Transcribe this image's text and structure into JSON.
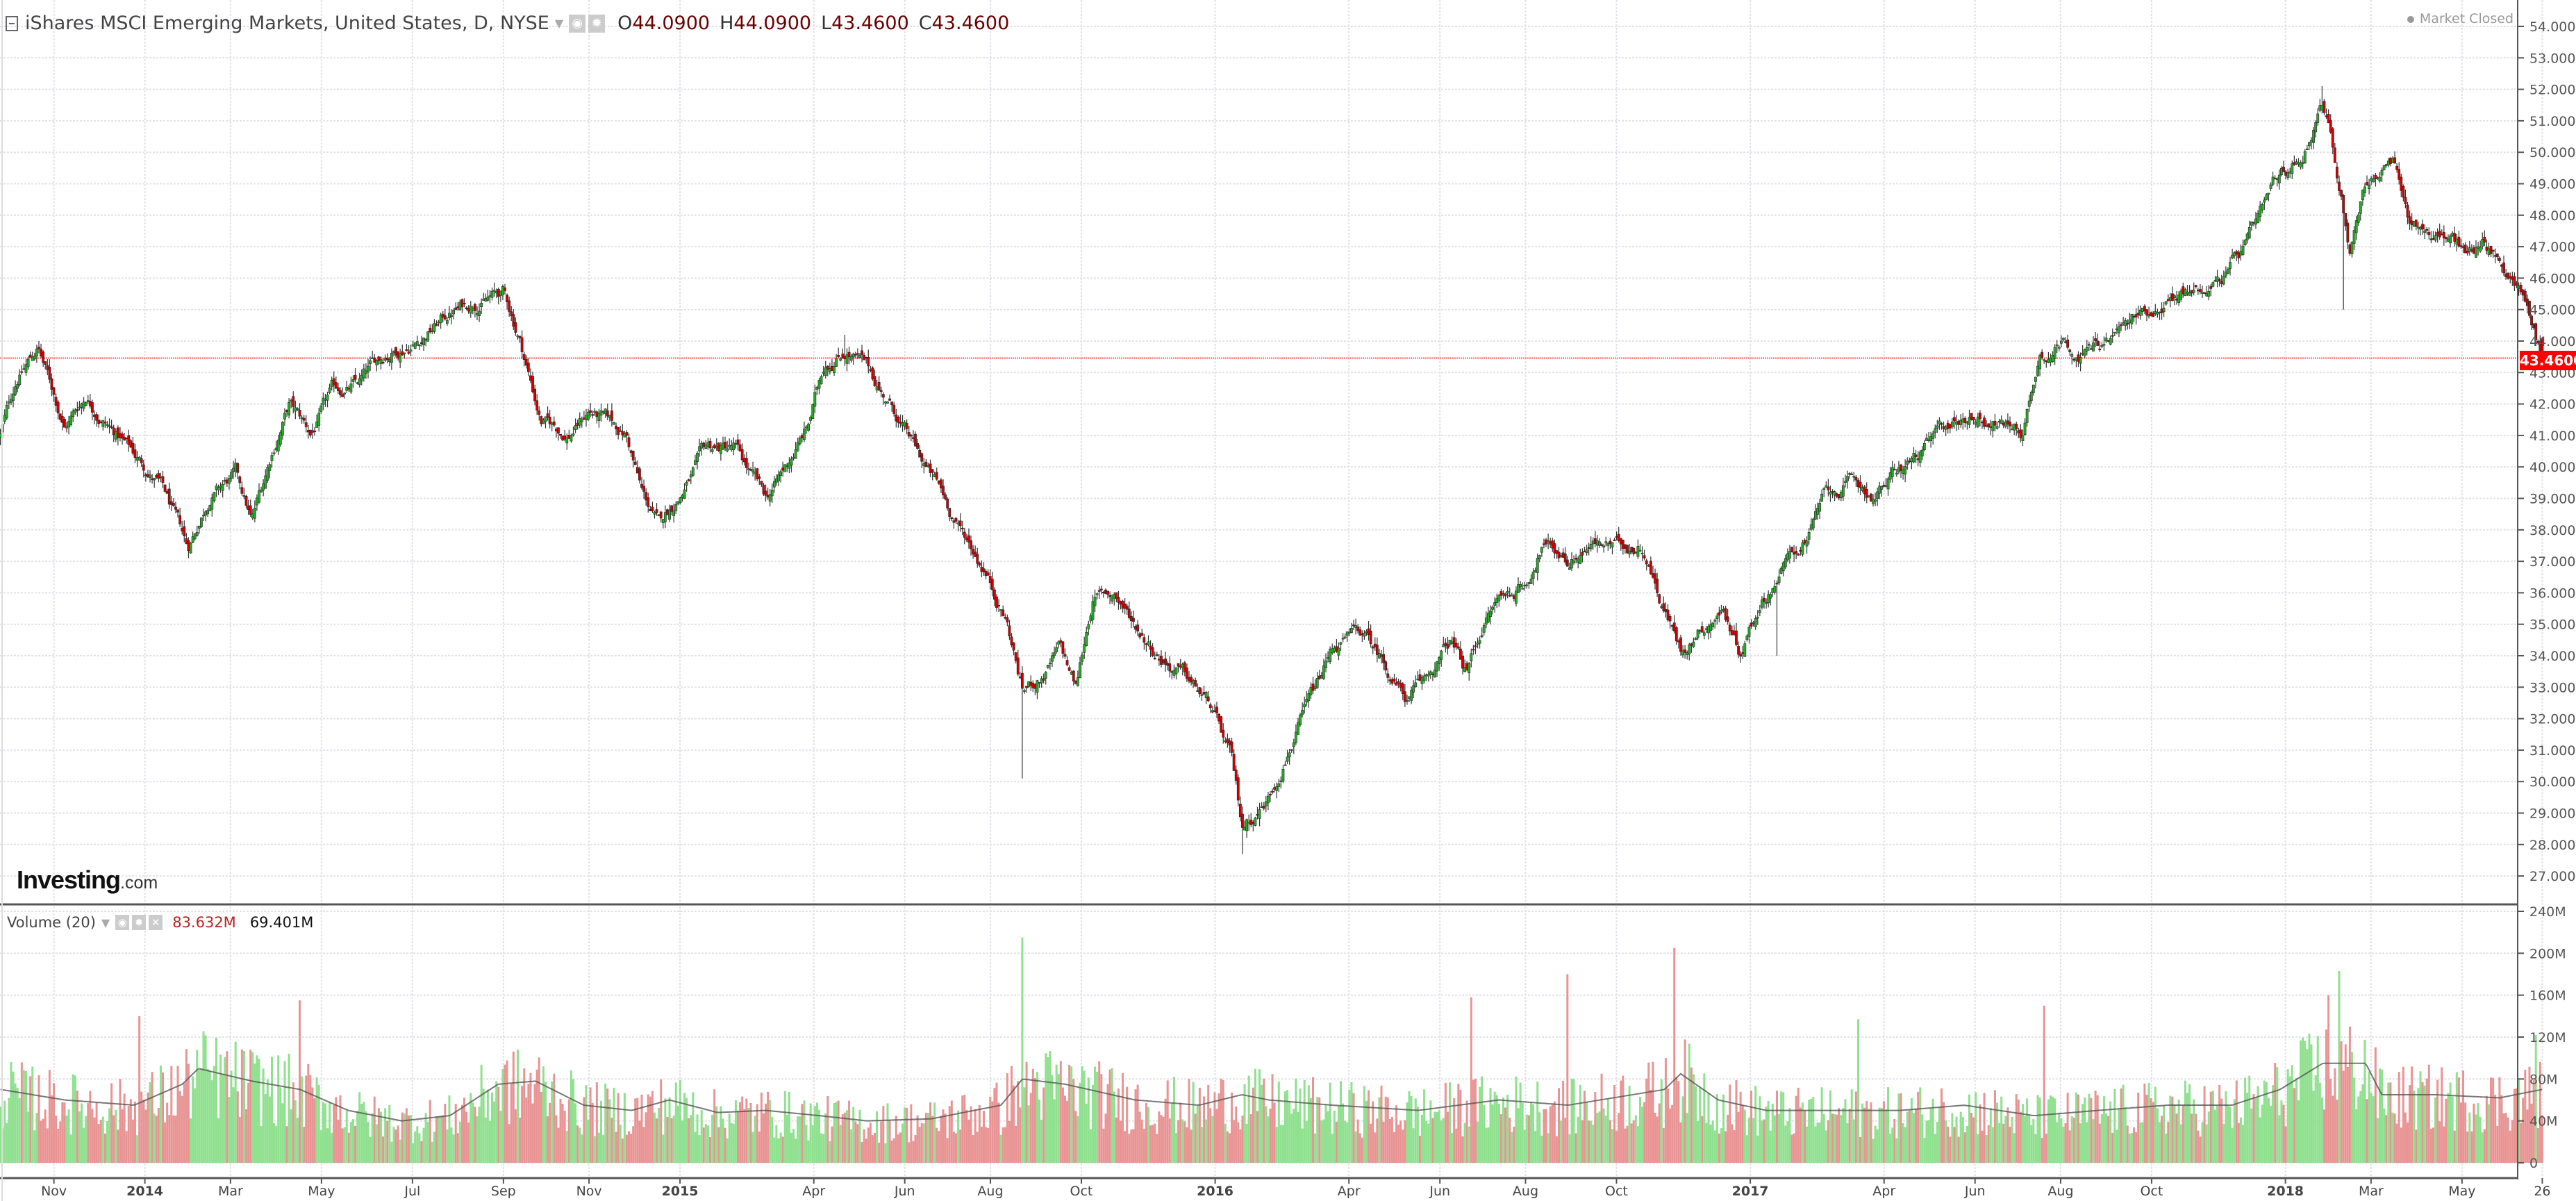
{
  "header": {
    "title": "iShares MSCI Emerging Markets, United States, D, NYSE",
    "ohlc": [
      {
        "key": "O",
        "value": "44.0900"
      },
      {
        "key": "H",
        "value": "44.0900"
      },
      {
        "key": "L",
        "value": "43.4600"
      },
      {
        "key": "C",
        "value": "43.4600"
      }
    ],
    "market_status": "Market Closed"
  },
  "logo": {
    "big": "Investing",
    "small": ".com"
  },
  "volume_legend": {
    "title": "Volume (20)",
    "value1": "83.632M",
    "value2": "69.401M"
  },
  "last_price_label": "43.4600",
  "colors": {
    "up": "#22b022",
    "down": "#d40000",
    "vol_up": "#8fe08f",
    "vol_down": "#e99494",
    "ma": "#555555",
    "last_line": "#ff6666"
  },
  "chart_data": [
    {
      "type": "candlestick",
      "title": "iShares MSCI Emerging Markets, United States, D, NYSE",
      "ylim": [
        26.5,
        54.5
      ],
      "y_ticks": [
        "27.0000",
        "28.0000",
        "29.0000",
        "30.0000",
        "31.0000",
        "32.0000",
        "33.0000",
        "34.0000",
        "35.0000",
        "36.0000",
        "37.0000",
        "38.0000",
        "39.0000",
        "40.0000",
        "41.0000",
        "42.0000",
        "43.0000",
        "44.0000",
        "45.0000",
        "46.0000",
        "47.0000",
        "48.0000",
        "49.0000",
        "50.0000",
        "51.0000",
        "52.0000",
        "53.0000",
        "54.0000"
      ],
      "last_close": 43.46,
      "x_range_years": [
        2013.73,
        2018.48
      ],
      "x_ticks": [
        {
          "t": 2013.83,
          "label": "Nov"
        },
        {
          "t": 2014.0,
          "label": "2014",
          "bold": true
        },
        {
          "t": 2014.16,
          "label": "Mar"
        },
        {
          "t": 2014.33,
          "label": "May"
        },
        {
          "t": 2014.5,
          "label": "Jul"
        },
        {
          "t": 2014.67,
          "label": "Sep"
        },
        {
          "t": 2014.83,
          "label": "Nov"
        },
        {
          "t": 2015.0,
          "label": "2015",
          "bold": true
        },
        {
          "t": 2015.25,
          "label": "Apr"
        },
        {
          "t": 2015.42,
          "label": "Jun"
        },
        {
          "t": 2015.58,
          "label": "Aug"
        },
        {
          "t": 2015.75,
          "label": "Oct"
        },
        {
          "t": 2016.0,
          "label": "2016",
          "bold": true
        },
        {
          "t": 2016.25,
          "label": "Apr"
        },
        {
          "t": 2016.42,
          "label": "Jun"
        },
        {
          "t": 2016.58,
          "label": "Aug"
        },
        {
          "t": 2016.75,
          "label": "Oct"
        },
        {
          "t": 2017.0,
          "label": "2017",
          "bold": true
        },
        {
          "t": 2017.25,
          "label": "Apr"
        },
        {
          "t": 2017.42,
          "label": "Jun"
        },
        {
          "t": 2017.58,
          "label": "Aug"
        },
        {
          "t": 2017.75,
          "label": "Oct"
        },
        {
          "t": 2018.0,
          "label": "2018",
          "bold": true
        },
        {
          "t": 2018.16,
          "label": "Mar"
        },
        {
          "t": 2018.33,
          "label": "May"
        },
        {
          "t": 2018.48,
          "label": "26"
        }
      ],
      "close_path": [
        [
          2013.73,
          41.0
        ],
        [
          2013.76,
          42.8
        ],
        [
          2013.8,
          43.8
        ],
        [
          2013.85,
          41.3
        ],
        [
          2013.89,
          42.3
        ],
        [
          2013.95,
          41.0
        ],
        [
          2014.03,
          39.4
        ],
        [
          2014.08,
          37.3
        ],
        [
          2014.12,
          39.1
        ],
        [
          2014.17,
          39.7
        ],
        [
          2014.2,
          38.2
        ],
        [
          2014.24,
          40.6
        ],
        [
          2014.27,
          42.0
        ],
        [
          2014.31,
          41.0
        ],
        [
          2014.35,
          42.3
        ],
        [
          2014.4,
          42.6
        ],
        [
          2014.45,
          43.6
        ],
        [
          2014.51,
          44.1
        ],
        [
          2014.57,
          44.9
        ],
        [
          2014.63,
          45.4
        ],
        [
          2014.67,
          45.5
        ],
        [
          2014.7,
          44.1
        ],
        [
          2014.74,
          41.5
        ],
        [
          2014.79,
          41.0
        ],
        [
          2014.83,
          41.8
        ],
        [
          2014.9,
          41.0
        ],
        [
          2014.93,
          39.1
        ],
        [
          2014.96,
          38.1
        ],
        [
          2015.01,
          39.4
        ],
        [
          2015.05,
          40.5
        ],
        [
          2015.1,
          40.6
        ],
        [
          2015.16,
          38.9
        ],
        [
          2015.19,
          39.7
        ],
        [
          2015.24,
          41.3
        ],
        [
          2015.27,
          43.3
        ],
        [
          2015.31,
          43.8
        ],
        [
          2015.35,
          43.1
        ],
        [
          2015.4,
          41.8
        ],
        [
          2015.44,
          40.5
        ],
        [
          2015.49,
          39.1
        ],
        [
          2015.52,
          38.1
        ],
        [
          2015.57,
          36.8
        ],
        [
          2015.61,
          35.2
        ],
        [
          2015.64,
          32.9
        ],
        [
          2015.68,
          33.4
        ],
        [
          2015.71,
          34.2
        ],
        [
          2015.74,
          32.9
        ],
        [
          2015.77,
          35.8
        ],
        [
          2015.81,
          36.0
        ],
        [
          2015.85,
          35.0
        ],
        [
          2015.89,
          34.2
        ],
        [
          2015.94,
          33.4
        ],
        [
          2015.99,
          32.4
        ],
        [
          2016.03,
          30.6
        ],
        [
          2016.05,
          28.5
        ],
        [
          2016.1,
          29.5
        ],
        [
          2016.14,
          31.3
        ],
        [
          2016.19,
          32.9
        ],
        [
          2016.22,
          34.2
        ],
        [
          2016.27,
          34.7
        ],
        [
          2016.31,
          33.9
        ],
        [
          2016.36,
          32.6
        ],
        [
          2016.39,
          33.1
        ],
        [
          2016.44,
          34.4
        ],
        [
          2016.47,
          33.4
        ],
        [
          2016.5,
          35.0
        ],
        [
          2016.53,
          35.8
        ],
        [
          2016.58,
          36.3
        ],
        [
          2016.61,
          37.6
        ],
        [
          2016.66,
          37.1
        ],
        [
          2016.7,
          37.6
        ],
        [
          2016.75,
          37.4
        ],
        [
          2016.8,
          37.6
        ],
        [
          2016.83,
          36.0
        ],
        [
          2016.87,
          34.2
        ],
        [
          2016.91,
          35.0
        ],
        [
          2016.95,
          35.5
        ],
        [
          2016.98,
          34.2
        ],
        [
          2017.02,
          35.8
        ],
        [
          2017.06,
          36.8
        ],
        [
          2017.11,
          37.9
        ],
        [
          2017.14,
          39.1
        ],
        [
          2017.19,
          39.4
        ],
        [
          2017.23,
          39.1
        ],
        [
          2017.28,
          39.9
        ],
        [
          2017.33,
          40.6
        ],
        [
          2017.37,
          41.3
        ],
        [
          2017.42,
          41.7
        ],
        [
          2017.47,
          41.4
        ],
        [
          2017.51,
          41.2
        ],
        [
          2017.54,
          43.6
        ],
        [
          2017.59,
          44.1
        ],
        [
          2017.62,
          43.6
        ],
        [
          2017.67,
          44.1
        ],
        [
          2017.72,
          44.7
        ],
        [
          2017.78,
          45.4
        ],
        [
          2017.84,
          45.7
        ],
        [
          2017.89,
          46.2
        ],
        [
          2017.92,
          46.8
        ],
        [
          2017.95,
          47.6
        ],
        [
          2017.98,
          48.8
        ],
        [
          2018.03,
          49.9
        ],
        [
          2018.07,
          51.7
        ],
        [
          2018.08,
          50.9
        ],
        [
          2018.11,
          48.1
        ],
        [
          2018.12,
          47.0
        ],
        [
          2018.15,
          49.1
        ],
        [
          2018.2,
          49.6
        ],
        [
          2018.23,
          47.8
        ],
        [
          2018.27,
          47.5
        ],
        [
          2018.31,
          47.3
        ],
        [
          2018.34,
          46.7
        ],
        [
          2018.37,
          47.3
        ],
        [
          2018.4,
          46.5
        ],
        [
          2018.43,
          46.0
        ],
        [
          2018.46,
          44.7
        ],
        [
          2018.48,
          43.46
        ]
      ],
      "notable_lows": [
        [
          2014.08,
          37.1
        ],
        [
          2015.64,
          30.1
        ],
        [
          2016.05,
          27.7
        ],
        [
          2018.11,
          45.0
        ],
        [
          2016.87,
          34.0
        ],
        [
          2017.05,
          34.0
        ]
      ],
      "notable_highs": [
        [
          2013.8,
          44.0
        ],
        [
          2014.67,
          45.8
        ],
        [
          2015.31,
          44.2
        ],
        [
          2018.07,
          52.1
        ]
      ]
    },
    {
      "type": "bar",
      "title": "Volume (20)",
      "ylim": [
        0,
        240
      ],
      "unit": "M",
      "y_ticks": [
        "0",
        "40M",
        "80M",
        "120M",
        "160M",
        "200M",
        "240M"
      ],
      "ma_period": 20,
      "ma_path": [
        [
          2013.73,
          70
        ],
        [
          2013.85,
          60
        ],
        [
          2013.98,
          55
        ],
        [
          2014.07,
          75
        ],
        [
          2014.1,
          90
        ],
        [
          2014.2,
          78
        ],
        [
          2014.29,
          70
        ],
        [
          2014.38,
          50
        ],
        [
          2014.48,
          40
        ],
        [
          2014.57,
          45
        ],
        [
          2014.66,
          75
        ],
        [
          2014.73,
          78
        ],
        [
          2014.82,
          55
        ],
        [
          2014.91,
          50
        ],
        [
          2014.98,
          60
        ],
        [
          2015.07,
          48
        ],
        [
          2015.16,
          50
        ],
        [
          2015.26,
          45
        ],
        [
          2015.35,
          40
        ],
        [
          2015.47,
          42
        ],
        [
          2015.6,
          55
        ],
        [
          2015.64,
          80
        ],
        [
          2015.72,
          75
        ],
        [
          2015.85,
          60
        ],
        [
          2015.97,
          55
        ],
        [
          2016.05,
          65
        ],
        [
          2016.1,
          60
        ],
        [
          2016.22,
          55
        ],
        [
          2016.38,
          50
        ],
        [
          2016.53,
          60
        ],
        [
          2016.66,
          55
        ],
        [
          2016.78,
          65
        ],
        [
          2016.84,
          70
        ],
        [
          2016.87,
          85
        ],
        [
          2016.94,
          60
        ],
        [
          2017.03,
          50
        ],
        [
          2017.16,
          50
        ],
        [
          2017.28,
          50
        ],
        [
          2017.4,
          55
        ],
        [
          2017.53,
          45
        ],
        [
          2017.65,
          50
        ],
        [
          2017.78,
          55
        ],
        [
          2017.9,
          55
        ],
        [
          2017.99,
          70
        ],
        [
          2018.07,
          95
        ],
        [
          2018.15,
          95
        ],
        [
          2018.18,
          65
        ],
        [
          2018.28,
          65
        ],
        [
          2018.4,
          62
        ],
        [
          2018.48,
          70
        ]
      ],
      "spikes": [
        [
          2015.64,
          215,
          "up"
        ],
        [
          2016.86,
          205,
          "down"
        ],
        [
          2016.66,
          180,
          "down"
        ],
        [
          2016.48,
          158,
          "down"
        ],
        [
          2017.2,
          137,
          "up"
        ],
        [
          2018.1,
          183,
          "up"
        ],
        [
          2018.08,
          160,
          "down"
        ],
        [
          2014.29,
          155,
          "down"
        ],
        [
          2013.99,
          140,
          "down"
        ],
        [
          2017.55,
          150,
          "down"
        ],
        [
          2018.47,
          122,
          "up"
        ]
      ]
    }
  ]
}
